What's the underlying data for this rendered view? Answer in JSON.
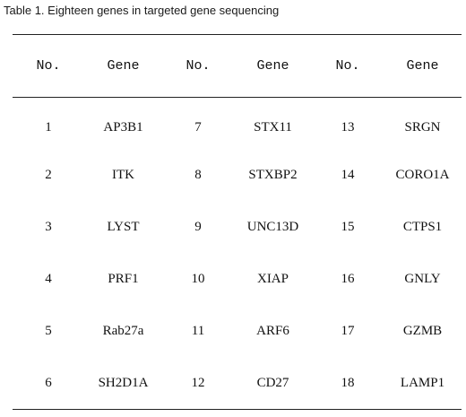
{
  "caption": "Table 1. Eighteen genes in targeted gene sequencing",
  "table": {
    "headers": [
      "No.",
      "Gene",
      "No.",
      "Gene",
      "No.",
      "Gene"
    ],
    "rows": [
      [
        "1",
        "AP3B1",
        "7",
        "STX11",
        "13",
        "SRGN"
      ],
      [
        "2",
        "ITK",
        "8",
        "STXBP2",
        "14",
        "CORO1A"
      ],
      [
        "3",
        "LYST",
        "9",
        "UNC13D",
        "15",
        "CTPS1"
      ],
      [
        "4",
        "PRF1",
        "10",
        "XIAP",
        "16",
        "GNLY"
      ],
      [
        "5",
        "Rab27a",
        "11",
        "ARF6",
        "17",
        "GZMB"
      ],
      [
        "6",
        "SH2D1A",
        "12",
        "CD27",
        "18",
        "LAMP1"
      ]
    ]
  }
}
